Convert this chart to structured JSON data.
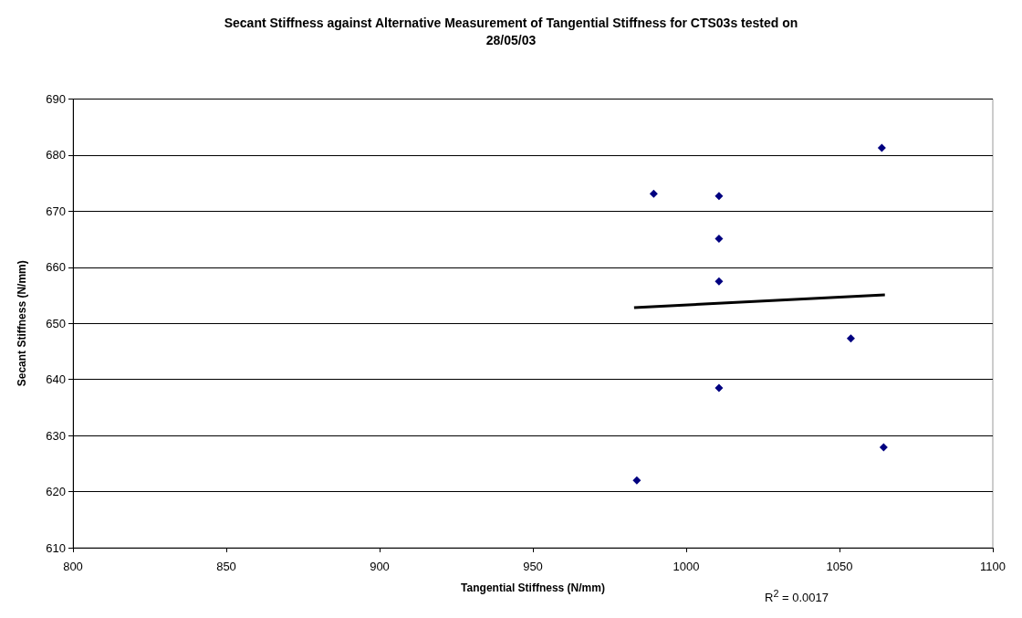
{
  "chart_data": {
    "type": "scatter",
    "title": "Secant Stiffness against Alternative Measurement of Tangential Stiffness for CTS03s tested on 28/05/03",
    "xlabel": "Tangential Stiffness (N/mm)",
    "ylabel": "Secant Stiffness (N/mm)",
    "series": [
      {
        "type": "scatter",
        "color": "#000080",
        "marker": "diamond",
        "x": [
          1063.8,
          989.4,
          1010.7,
          1010.7,
          1010.7,
          1053.7,
          1010.7,
          1064.4,
          983.9
        ],
        "values": [
          681.3,
          673.1,
          672.7,
          665.1,
          657.5,
          647.3,
          638.5,
          627.9,
          622.0
        ]
      },
      {
        "type": "line",
        "color": "#000000",
        "marker": "none",
        "x": [
          983.0,
          1064.8
        ],
        "values": [
          652.8,
          655.1
        ]
      }
    ],
    "xlim": [
      800,
      1100
    ],
    "xticks": [
      800,
      850,
      900,
      950,
      1000,
      1050,
      1100
    ],
    "ylim": [
      610,
      690
    ],
    "yticks": [
      610,
      620,
      630,
      640,
      650,
      660,
      670,
      680,
      690
    ],
    "grid": "y",
    "annotations": [
      "R$^{2}$ = 0.0017"
    ]
  }
}
